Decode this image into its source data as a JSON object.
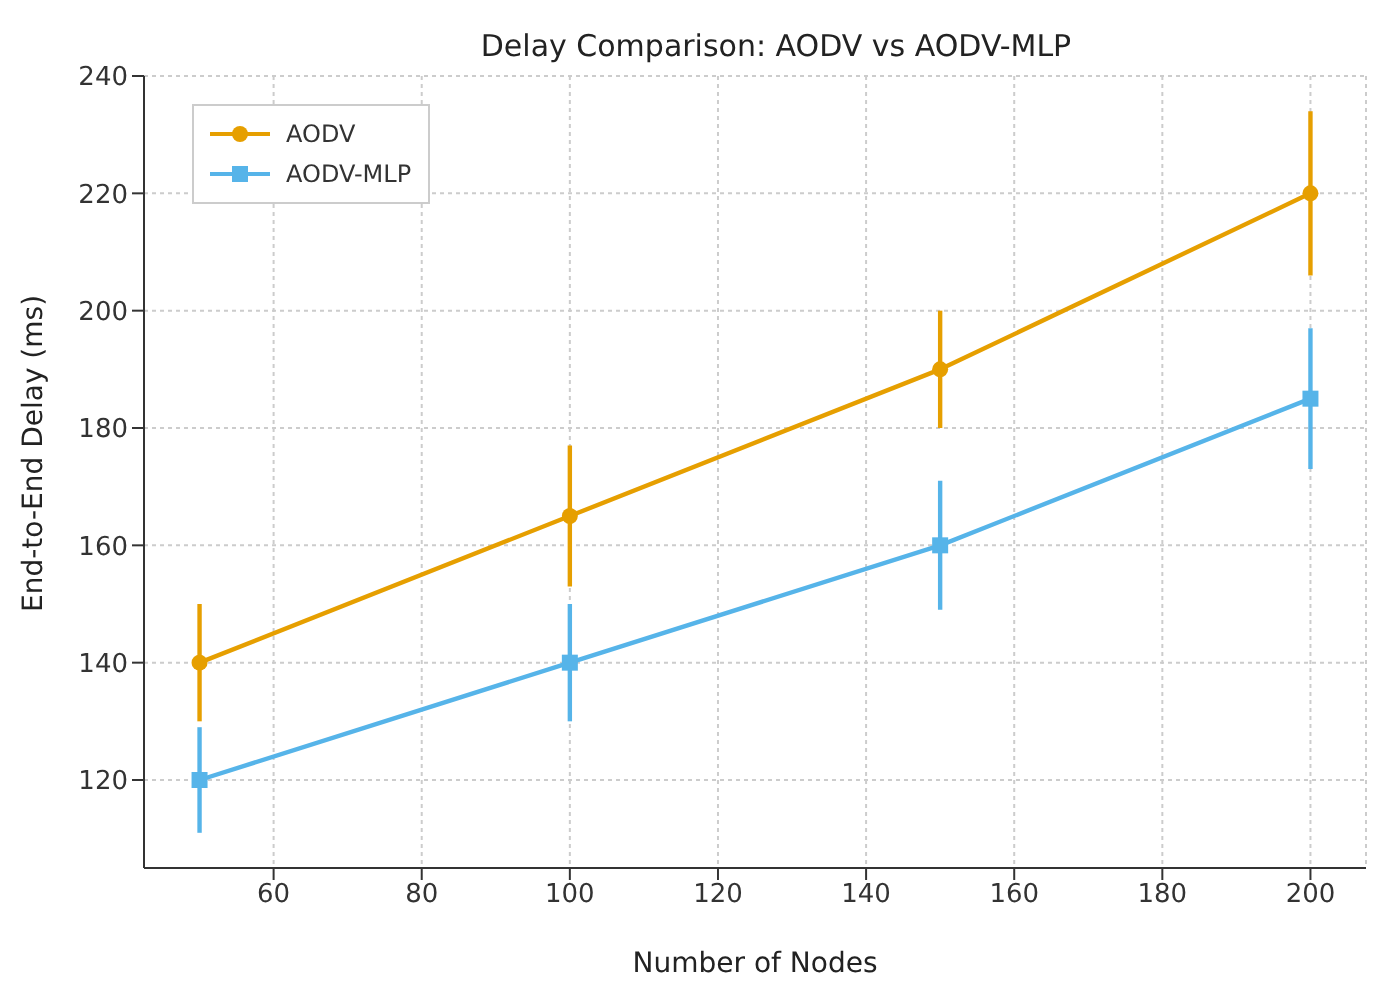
{
  "chart_data": {
    "type": "line",
    "title": "Delay Comparison: AODV vs AODV-MLP",
    "xlabel": "Number of Nodes",
    "ylabel": "End-to-End Delay (ms)",
    "x": [
      50,
      100,
      150,
      200
    ],
    "series": [
      {
        "name": "AODV",
        "color": "#e69f00",
        "marker": "circle",
        "values": [
          140,
          165,
          190,
          220
        ],
        "errors": [
          10,
          12,
          10,
          14
        ]
      },
      {
        "name": "AODV-MLP",
        "color": "#56b4e9",
        "marker": "square",
        "values": [
          120,
          140,
          160,
          185
        ],
        "errors": [
          9,
          10,
          11,
          12
        ]
      }
    ],
    "xlim": [
      42.5,
      207.5
    ],
    "xticks": [
      60,
      80,
      100,
      120,
      140,
      160,
      180,
      200
    ],
    "ylim": [
      105,
      240
    ],
    "yticks": [
      120,
      140,
      160,
      180,
      200,
      220,
      240
    ],
    "grid": true,
    "legend": "top left"
  }
}
